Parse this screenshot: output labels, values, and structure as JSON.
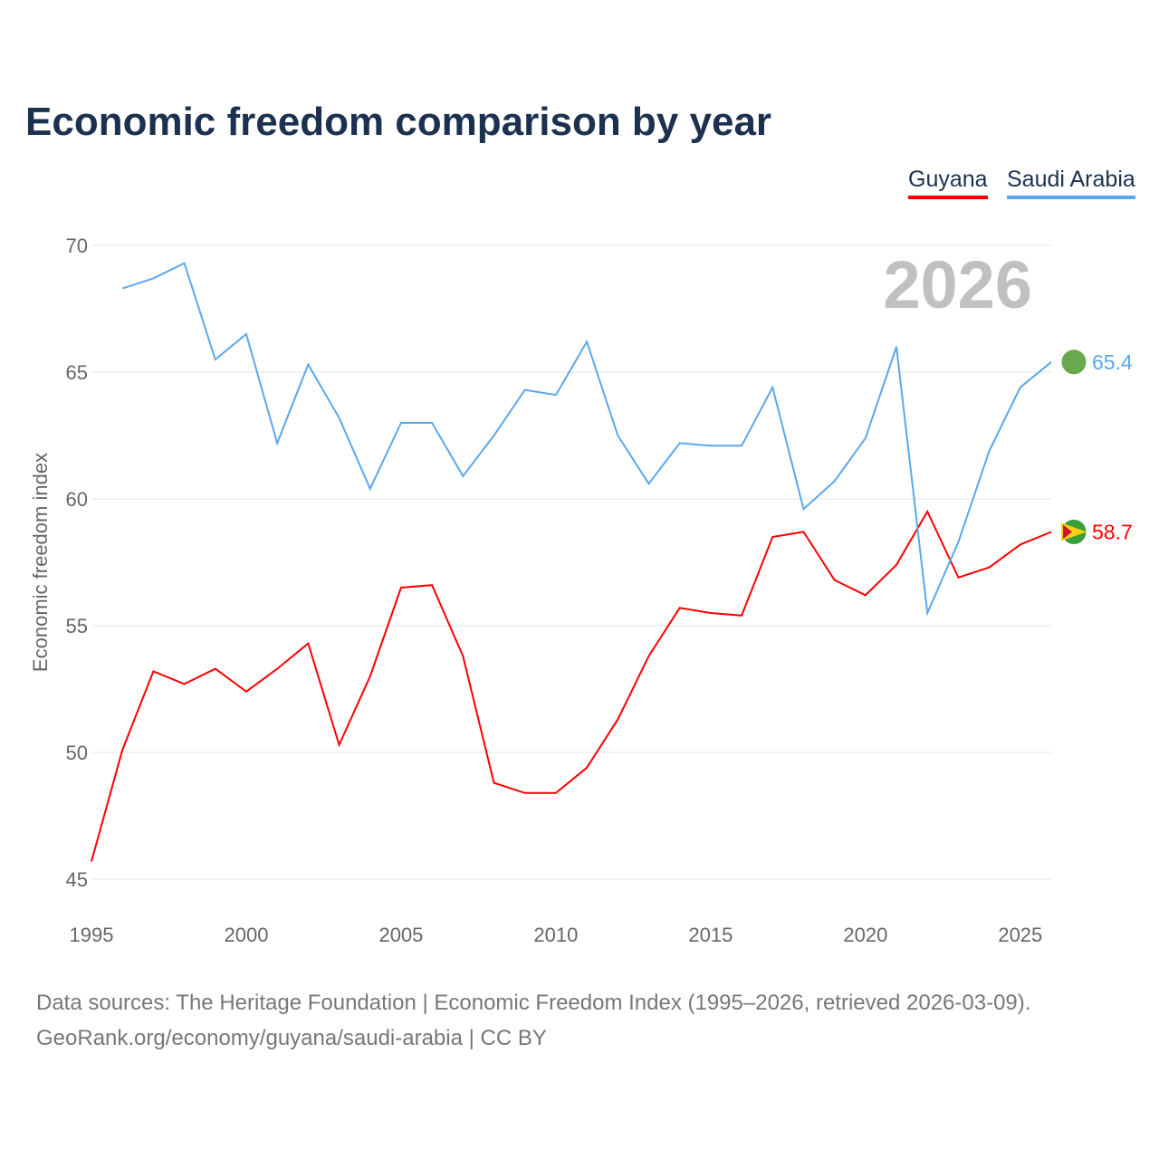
{
  "chart_data": {
    "type": "line",
    "title": "Economic freedom comparison by year",
    "xlabel": "",
    "ylabel": "Economic freedom index",
    "ylim": [
      45,
      70
    ],
    "xlim": [
      1995,
      2026
    ],
    "yticks": [
      "45",
      "50",
      "55",
      "60",
      "65",
      "70"
    ],
    "xticks": [
      "1995",
      "2000",
      "2005",
      "2010",
      "2015",
      "2020",
      "2025"
    ],
    "year_label": "2026",
    "grid": true,
    "legend_placement": "top-right",
    "series": [
      {
        "name": "Guyana",
        "color": "#ff0000",
        "end_label": "58.7",
        "x": [
          1995,
          1996,
          1997,
          1998,
          1999,
          2000,
          2001,
          2002,
          2003,
          2004,
          2005,
          2006,
          2007,
          2008,
          2009,
          2010,
          2011,
          2012,
          2013,
          2014,
          2015,
          2016,
          2017,
          2018,
          2019,
          2020,
          2021,
          2022,
          2023,
          2024,
          2025,
          2026
        ],
        "values": [
          45.7,
          50.1,
          53.2,
          52.7,
          53.3,
          52.4,
          53.3,
          54.3,
          50.3,
          53.0,
          56.5,
          56.6,
          53.8,
          48.8,
          48.4,
          48.4,
          49.4,
          51.3,
          53.8,
          55.7,
          55.5,
          55.4,
          58.5,
          58.7,
          56.8,
          56.2,
          57.4,
          59.5,
          56.9,
          57.3,
          58.2,
          58.7
        ]
      },
      {
        "name": "Saudi Arabia",
        "color": "#5aa7ee",
        "end_label": "65.4",
        "x": [
          1996,
          1997,
          1998,
          1999,
          2000,
          2001,
          2002,
          2003,
          2004,
          2005,
          2006,
          2007,
          2008,
          2009,
          2010,
          2011,
          2012,
          2013,
          2014,
          2015,
          2016,
          2017,
          2018,
          2019,
          2020,
          2021,
          2022,
          2023,
          2024,
          2025,
          2026
        ],
        "values": [
          68.3,
          68.7,
          69.3,
          65.5,
          66.5,
          62.2,
          65.3,
          63.2,
          60.4,
          63.0,
          63.0,
          60.9,
          62.5,
          64.3,
          64.1,
          66.2,
          62.5,
          60.6,
          62.2,
          62.1,
          62.1,
          64.4,
          59.6,
          60.7,
          62.4,
          66.0,
          55.5,
          58.3,
          61.9,
          64.4,
          65.4
        ]
      }
    ]
  },
  "footer": {
    "line1": "Data sources: The Heritage Foundation | Economic Freedom Index (1995–2026, retrieved 2026-03-09).",
    "line2": "GeoRank.org/economy/guyana/saudi-arabia | CC BY"
  }
}
